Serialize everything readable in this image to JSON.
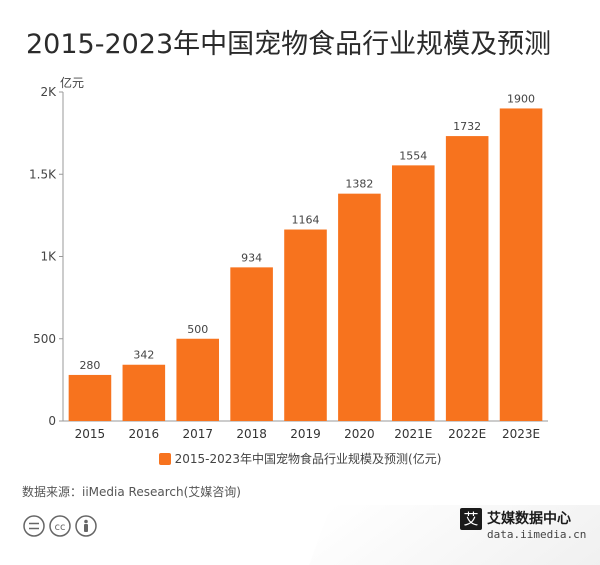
{
  "title": "2015-2023年中国宠物食品行业规模及预测",
  "unit_label": "亿元",
  "legend_label": "2015-2023年中国宠物食品行业规模及预测(亿元)",
  "source_text": "数据来源：iiMedia Research(艾媒咨询)",
  "logo": {
    "mark": "艾",
    "brand": "艾媒数据中心",
    "url": "data.iimedia.cn"
  },
  "colors": {
    "bar": "#f7731e",
    "axis": "#999999",
    "grid": "#e6e6e6"
  },
  "chart_data": {
    "type": "bar",
    "title": "2015-2023年中国宠物食品行业规模及预测",
    "categories": [
      "2015",
      "2016",
      "2017",
      "2018",
      "2019",
      "2020",
      "2021E",
      "2022E",
      "2023E"
    ],
    "series": [
      {
        "name": "2015-2023年中国宠物食品行业规模及预测(亿元)",
        "values": [
          280,
          342,
          500,
          934,
          1164,
          1382,
          1554,
          1732,
          1900
        ]
      }
    ],
    "yticks": [
      0,
      500,
      1000,
      1500,
      2000
    ],
    "ytick_labels": [
      "0",
      "500",
      "1K",
      "1.5K",
      "2K"
    ],
    "ylim": [
      0,
      2000
    ],
    "ylabel": "亿元",
    "xlabel": "",
    "legend_position": "bottom",
    "grid": false
  }
}
